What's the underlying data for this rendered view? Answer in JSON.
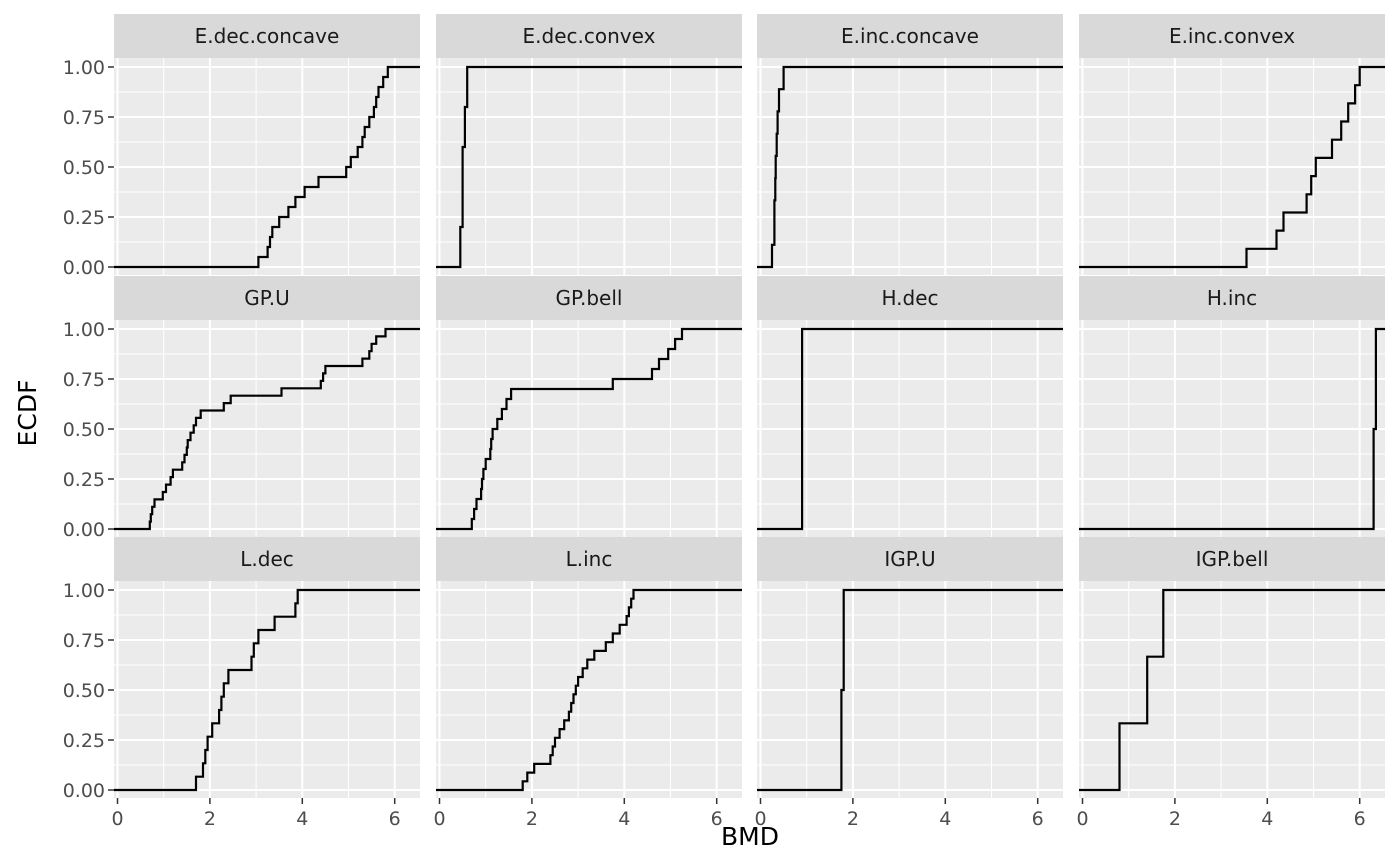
{
  "chart_data": {
    "type": "line",
    "subtype": "ecdf-step",
    "facet_layout": "3 rows x 4 columns",
    "xlabel": "BMD",
    "ylabel": "ECDF",
    "xlim": [
      0,
      6.6
    ],
    "ylim": [
      0,
      1
    ],
    "x_ticks": [
      "0",
      "2",
      "4",
      "6"
    ],
    "y_ticks": [
      "0.00",
      "0.25",
      "0.50",
      "0.75",
      "1.00"
    ],
    "grid": true,
    "colors": {
      "panel_bg": "#EBEBEB",
      "strip_bg": "#D9D9D9",
      "grid": "#FFFFFF",
      "line": "#000000"
    },
    "panels": [
      {
        "name": "E.dec.concave",
        "x": [
          3.05,
          3.25,
          3.3,
          3.35,
          3.5,
          3.7,
          3.85,
          4.05,
          4.35,
          4.95,
          5.05,
          5.2,
          5.3,
          5.35,
          5.45,
          5.55,
          5.6,
          5.65,
          5.75,
          5.85
        ]
      },
      {
        "name": "E.dec.convex",
        "x": [
          0.45,
          0.5,
          0.5,
          0.55,
          0.6
        ]
      },
      {
        "name": "E.inc.concave",
        "x": [
          0.25,
          0.3,
          0.3,
          0.32,
          0.33,
          0.35,
          0.37,
          0.4,
          0.5
        ]
      },
      {
        "name": "E.inc.convex",
        "x": [
          3.55,
          4.2,
          4.35,
          4.85,
          4.95,
          5.05,
          5.4,
          5.6,
          5.75,
          5.9,
          6.0
        ]
      },
      {
        "name": "GP.U",
        "x": [
          0.7,
          0.72,
          0.75,
          0.8,
          0.98,
          1.05,
          1.15,
          1.2,
          1.4,
          1.45,
          1.5,
          1.52,
          1.58,
          1.65,
          1.7,
          1.8,
          2.3,
          2.45,
          3.55,
          4.4,
          4.45,
          4.5,
          5.3,
          5.45,
          5.5,
          5.6,
          5.8
        ]
      },
      {
        "name": "GP.bell",
        "x": [
          0.7,
          0.75,
          0.8,
          0.9,
          0.92,
          0.95,
          1.0,
          1.1,
          1.12,
          1.15,
          1.25,
          1.35,
          1.45,
          1.55,
          3.75,
          4.6,
          4.75,
          4.95,
          5.1,
          5.25
        ]
      },
      {
        "name": "H.dec",
        "x": [
          0.9
        ]
      },
      {
        "name": "H.inc",
        "x": [
          6.3,
          6.35
        ]
      },
      {
        "name": "L.dec",
        "x": [
          1.7,
          1.85,
          1.9,
          1.95,
          2.05,
          2.2,
          2.25,
          2.3,
          2.4,
          2.9,
          2.95,
          3.05,
          3.4,
          3.85,
          3.9
        ]
      },
      {
        "name": "L.inc",
        "x": [
          1.8,
          1.9,
          2.05,
          2.4,
          2.45,
          2.5,
          2.6,
          2.7,
          2.8,
          2.85,
          2.9,
          2.95,
          3.0,
          3.1,
          3.2,
          3.35,
          3.6,
          3.75,
          3.9,
          4.05,
          4.1,
          4.15,
          4.2
        ]
      },
      {
        "name": "IGP.U",
        "x": [
          1.75,
          1.8
        ]
      },
      {
        "name": "IGP.bell",
        "x": [
          0.8,
          1.4,
          1.75
        ]
      }
    ]
  }
}
